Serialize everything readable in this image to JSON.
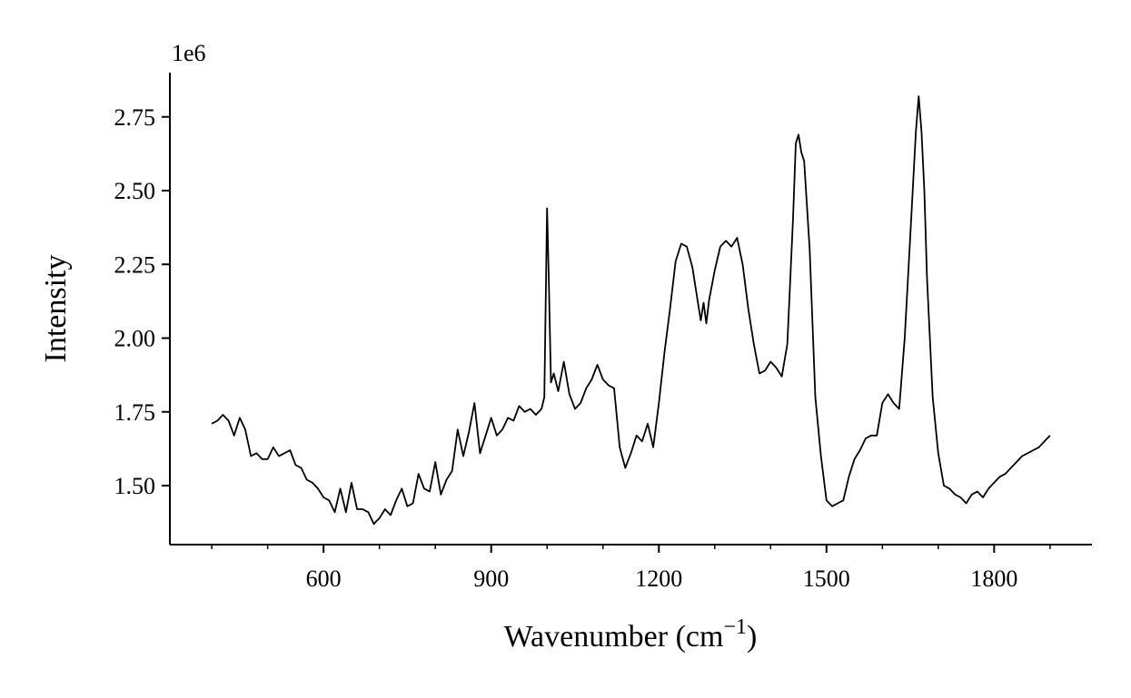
{
  "chart_data": {
    "type": "line",
    "title": "",
    "xlabel": "Wavenumber (cm",
    "xlabel_sup": "−1",
    "xlabel_close": ")",
    "ylabel": "Intensity",
    "y_multiplier": "1e6",
    "xlim": [
      325,
      1975
    ],
    "ylim": [
      1.3,
      2.9
    ],
    "x_ticks": [
      600,
      900,
      1200,
      1500,
      1800
    ],
    "x_tick_labels": [
      "600",
      "900",
      "1200",
      "1500",
      "1800"
    ],
    "x_minor_ticks": [
      400,
      500,
      700,
      800,
      1000,
      1100,
      1300,
      1400,
      1600,
      1700,
      1900
    ],
    "y_ticks": [
      1.5,
      1.75,
      2.0,
      2.25,
      2.5,
      2.75
    ],
    "y_tick_labels": [
      "1.50",
      "1.75",
      "2.00",
      "2.25",
      "2.50",
      "2.75"
    ],
    "grid": false,
    "line_color": "#000000",
    "series": [
      {
        "x": [
          400,
          410,
          420,
          430,
          440,
          450,
          460,
          470,
          480,
          490,
          500,
          510,
          520,
          530,
          540,
          550,
          560,
          570,
          580,
          590,
          600,
          610,
          620,
          630,
          640,
          650,
          660,
          670,
          680,
          690,
          700,
          710,
          720,
          730,
          740,
          750,
          760,
          770,
          780,
          790,
          800,
          810,
          820,
          830,
          840,
          850,
          860,
          870,
          880,
          890,
          900,
          910,
          920,
          930,
          940,
          950,
          960,
          970,
          980,
          990,
          995,
          1000,
          1003,
          1007,
          1012,
          1020,
          1030,
          1040,
          1050,
          1060,
          1070,
          1080,
          1090,
          1100,
          1110,
          1120,
          1130,
          1140,
          1150,
          1160,
          1170,
          1180,
          1190,
          1200,
          1210,
          1220,
          1230,
          1240,
          1250,
          1260,
          1270,
          1275,
          1280,
          1285,
          1290,
          1300,
          1310,
          1320,
          1330,
          1340,
          1350,
          1360,
          1370,
          1380,
          1390,
          1400,
          1410,
          1420,
          1430,
          1440,
          1445,
          1450,
          1455,
          1460,
          1470,
          1480,
          1490,
          1500,
          1510,
          1520,
          1530,
          1540,
          1550,
          1560,
          1570,
          1580,
          1590,
          1600,
          1610,
          1620,
          1630,
          1640,
          1650,
          1660,
          1665,
          1670,
          1675,
          1680,
          1690,
          1700,
          1710,
          1720,
          1730,
          1740,
          1750,
          1760,
          1770,
          1780,
          1790,
          1800,
          1810,
          1820,
          1830,
          1840,
          1850,
          1860,
          1870,
          1880,
          1890,
          1900
        ],
        "y": [
          1.71,
          1.72,
          1.74,
          1.72,
          1.67,
          1.73,
          1.69,
          1.6,
          1.61,
          1.59,
          1.59,
          1.63,
          1.6,
          1.61,
          1.62,
          1.57,
          1.56,
          1.52,
          1.51,
          1.49,
          1.46,
          1.45,
          1.41,
          1.49,
          1.41,
          1.51,
          1.42,
          1.42,
          1.41,
          1.37,
          1.39,
          1.42,
          1.4,
          1.45,
          1.49,
          1.43,
          1.44,
          1.54,
          1.49,
          1.48,
          1.58,
          1.47,
          1.52,
          1.55,
          1.69,
          1.6,
          1.68,
          1.78,
          1.61,
          1.67,
          1.73,
          1.67,
          1.69,
          1.73,
          1.72,
          1.77,
          1.75,
          1.76,
          1.74,
          1.76,
          1.8,
          2.44,
          2.2,
          1.85,
          1.88,
          1.82,
          1.92,
          1.81,
          1.76,
          1.78,
          1.83,
          1.86,
          1.91,
          1.86,
          1.84,
          1.83,
          1.63,
          1.56,
          1.61,
          1.67,
          1.65,
          1.71,
          1.63,
          1.78,
          1.95,
          2.1,
          2.26,
          2.32,
          2.31,
          2.24,
          2.12,
          2.06,
          2.12,
          2.05,
          2.13,
          2.23,
          2.31,
          2.33,
          2.31,
          2.34,
          2.25,
          2.1,
          1.98,
          1.88,
          1.89,
          1.92,
          1.9,
          1.87,
          1.98,
          2.4,
          2.66,
          2.69,
          2.63,
          2.6,
          2.3,
          1.8,
          1.6,
          1.45,
          1.43,
          1.44,
          1.45,
          1.53,
          1.59,
          1.62,
          1.66,
          1.67,
          1.67,
          1.78,
          1.81,
          1.78,
          1.76,
          2.0,
          2.35,
          2.7,
          2.82,
          2.7,
          2.5,
          2.2,
          1.8,
          1.61,
          1.5,
          1.49,
          1.47,
          1.46,
          1.44,
          1.47,
          1.48,
          1.46,
          1.49,
          1.51,
          1.53,
          1.54,
          1.56,
          1.58,
          1.6,
          1.61,
          1.62,
          1.63,
          1.65,
          1.67
        ]
      }
    ]
  }
}
